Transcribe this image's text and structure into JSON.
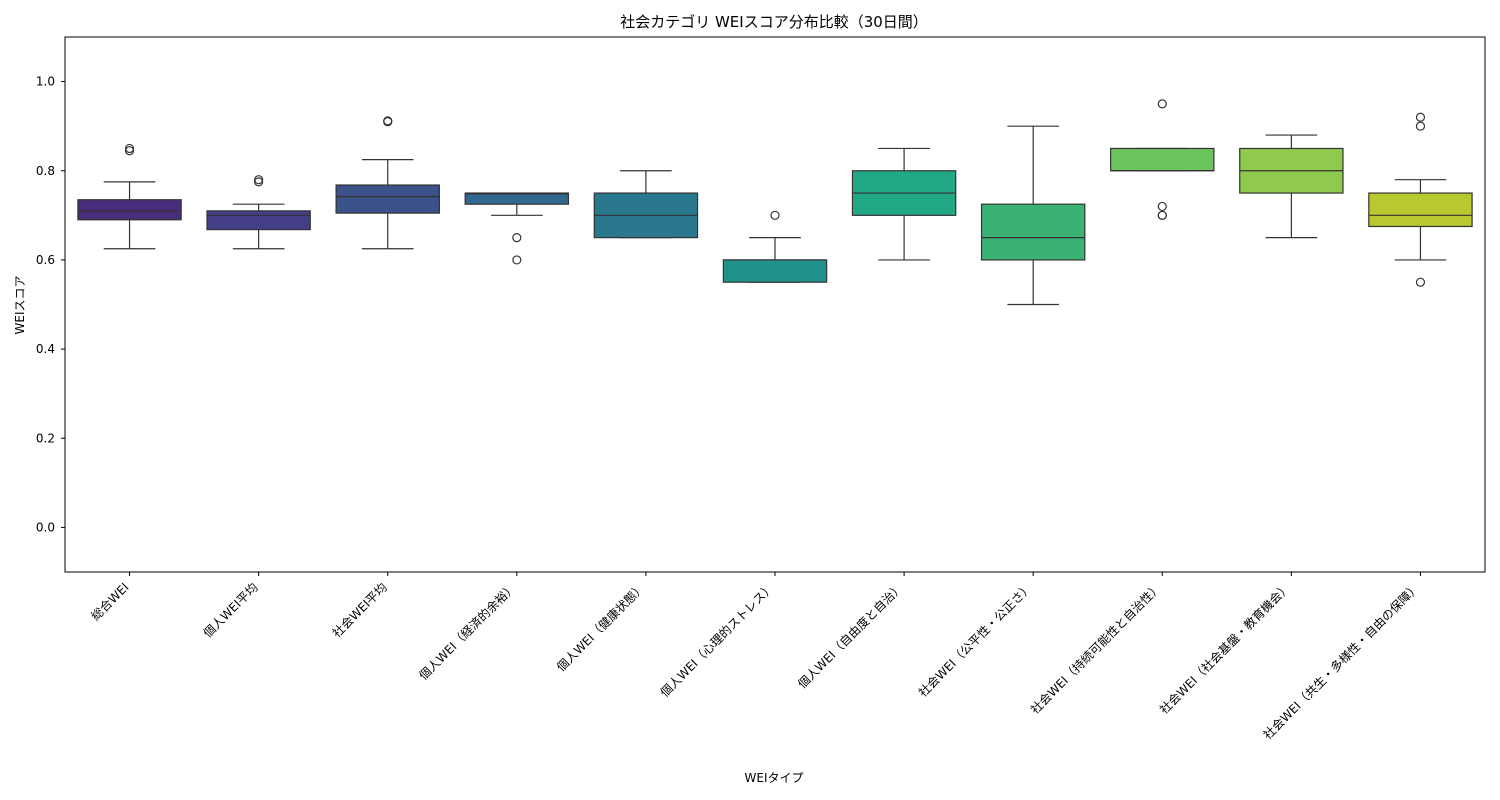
{
  "chart_data": {
    "type": "box",
    "title": "社会カテゴリ WEIスコア分布比較（30日間）",
    "xlabel": "WEIタイプ",
    "ylabel": "WEIスコア",
    "ylim": [
      -0.1,
      1.1
    ],
    "yticks": [
      0.0,
      0.2,
      0.4,
      0.6,
      0.8,
      1.0
    ],
    "ytick_labels": [
      "0.0",
      "0.2",
      "0.4",
      "0.6",
      "0.8",
      "1.0"
    ],
    "grid": false,
    "legend": "none",
    "categories": [
      "総合WEI",
      "個人WEI平均",
      "社会WEI平均",
      "個人WEI（経済的余裕）",
      "個人WEI（健康状態）",
      "個人WEI（心理的ストレス）",
      "個人WEI（自由度と自治）",
      "社会WEI（公平性・公正さ）",
      "社会WEI（持続可能性と自治性）",
      "社会WEI（社会基盤・教育機会）",
      "社会WEI（共生・多様性・自由の保障）"
    ],
    "boxes": [
      {
        "whisker_low": 0.625,
        "q1": 0.69,
        "median": 0.71,
        "q3": 0.735,
        "whisker_high": 0.775,
        "outliers": [
          0.845,
          0.85
        ],
        "color": "#472d7b"
      },
      {
        "whisker_low": 0.625,
        "q1": 0.668,
        "median": 0.7,
        "q3": 0.71,
        "whisker_high": 0.725,
        "outliers": [
          0.775,
          0.78
        ],
        "color": "#433e85"
      },
      {
        "whisker_low": 0.625,
        "q1": 0.705,
        "median": 0.742,
        "q3": 0.768,
        "whisker_high": 0.825,
        "outliers": [
          0.91,
          0.912
        ],
        "color": "#3b528b"
      },
      {
        "whisker_low": 0.7,
        "q1": 0.725,
        "median": 0.748,
        "q3": 0.75,
        "whisker_high": 0.75,
        "outliers": [
          0.65,
          0.6
        ],
        "color": "#31688e"
      },
      {
        "whisker_low": 0.65,
        "q1": 0.65,
        "median": 0.7,
        "q3": 0.75,
        "whisker_high": 0.8,
        "outliers": [],
        "color": "#2a788e"
      },
      {
        "whisker_low": 0.55,
        "q1": 0.55,
        "median": 0.6,
        "q3": 0.6,
        "whisker_high": 0.65,
        "outliers": [
          0.7
        ],
        "color": "#21918c"
      },
      {
        "whisker_low": 0.6,
        "q1": 0.7,
        "median": 0.75,
        "q3": 0.8,
        "whisker_high": 0.85,
        "outliers": [],
        "color": "#22a884"
      },
      {
        "whisker_low": 0.5,
        "q1": 0.6,
        "median": 0.65,
        "q3": 0.725,
        "whisker_high": 0.9,
        "outliers": [],
        "color": "#3bb174"
      },
      {
        "whisker_low": 0.8,
        "q1": 0.8,
        "median": 0.8,
        "q3": 0.85,
        "whisker_high": 0.85,
        "outliers": [
          0.72,
          0.7,
          0.7,
          0.95
        ],
        "color": "#6cc35b"
      },
      {
        "whisker_low": 0.65,
        "q1": 0.75,
        "median": 0.8,
        "q3": 0.85,
        "whisker_high": 0.88,
        "outliers": [],
        "color": "#8fca4f"
      },
      {
        "whisker_low": 0.6,
        "q1": 0.675,
        "median": 0.7,
        "q3": 0.75,
        "whisker_high": 0.78,
        "outliers": [
          0.92,
          0.9,
          0.55
        ],
        "color": "#b8c82f"
      }
    ]
  }
}
